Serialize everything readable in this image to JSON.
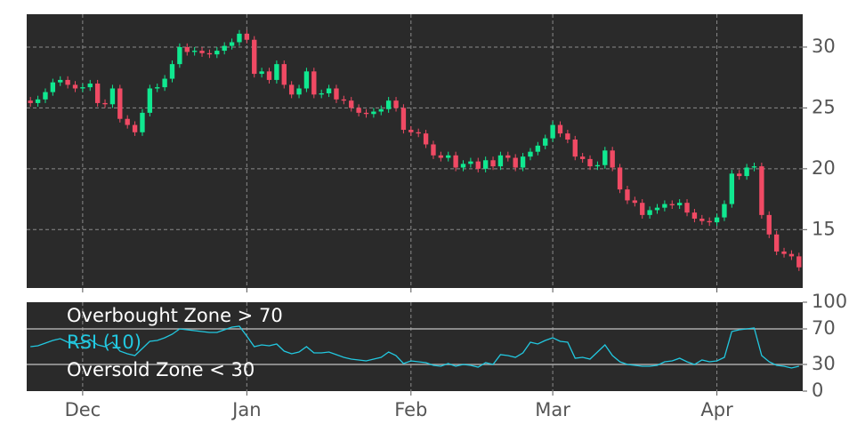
{
  "chart_data": [
    {
      "type": "candlestick",
      "categories": [
        null,
        null,
        null,
        null,
        null,
        null,
        null,
        "Dec",
        null,
        null,
        null,
        null,
        null,
        null,
        null,
        null,
        null,
        null,
        null,
        null,
        null,
        null,
        null,
        null,
        null,
        null,
        null,
        null,
        null,
        "Jan",
        null,
        null,
        null,
        null,
        null,
        null,
        null,
        null,
        null,
        null,
        null,
        null,
        null,
        null,
        null,
        null,
        null,
        null,
        null,
        null,
        null,
        "Feb",
        null,
        null,
        null,
        null,
        null,
        null,
        null,
        null,
        null,
        null,
        null,
        null,
        null,
        null,
        null,
        null,
        null,
        null,
        "Mar",
        null,
        null,
        null,
        null,
        null,
        null,
        null,
        null,
        null,
        null,
        null,
        null,
        null,
        null,
        null,
        null,
        null,
        null,
        null,
        null,
        null,
        "Apr",
        null,
        null,
        null,
        null,
        null,
        null,
        null,
        null,
        null,
        null,
        null
      ],
      "open": [
        25.6,
        25.4,
        25.7,
        26.3,
        27.1,
        27.3,
        26.9,
        26.6,
        26.7,
        27.0,
        25.4,
        25.3,
        26.6,
        24.1,
        23.6,
        23.0,
        24.6,
        26.6,
        26.7,
        27.4,
        28.6,
        30.0,
        29.6,
        29.7,
        29.5,
        29.4,
        29.7,
        30.1,
        30.4,
        31.1,
        30.6,
        27.8,
        28.0,
        27.3,
        28.6,
        26.9,
        26.1,
        26.6,
        28.0,
        26.1,
        26.2,
        26.6,
        25.7,
        25.6,
        25.0,
        24.6,
        24.5,
        24.7,
        24.9,
        25.6,
        25.0,
        23.2,
        23.0,
        22.9,
        22.0,
        21.1,
        20.9,
        21.1,
        20.1,
        20.4,
        20.6,
        20.0,
        20.7,
        20.2,
        21.1,
        20.9,
        20.1,
        21.0,
        21.4,
        21.9,
        22.5,
        23.6,
        22.9,
        22.4,
        21.0,
        20.8,
        20.2,
        20.3,
        21.5,
        20.1,
        18.3,
        17.4,
        17.2,
        16.2,
        16.6,
        16.8,
        17.1,
        17.0,
        17.2,
        16.4,
        15.9,
        15.7,
        15.6,
        16.0,
        17.1,
        19.6,
        19.4,
        20.1,
        20.2,
        16.2,
        14.6,
        13.2,
        13.0,
        12.8
      ],
      "high": [
        25.9,
        26.0,
        26.6,
        27.4,
        27.6,
        27.6,
        27.2,
        27.0,
        27.3,
        27.3,
        25.7,
        26.9,
        26.9,
        24.4,
        23.9,
        24.9,
        26.9,
        27.0,
        27.7,
        28.9,
        30.3,
        30.3,
        30.0,
        30.0,
        29.8,
        30.0,
        30.4,
        30.7,
        31.4,
        31.4,
        30.9,
        28.3,
        28.3,
        28.9,
        28.9,
        27.2,
        26.9,
        28.3,
        28.3,
        26.5,
        26.9,
        26.9,
        26.0,
        25.9,
        25.3,
        24.9,
        25.0,
        25.2,
        25.9,
        25.9,
        25.3,
        23.5,
        23.3,
        23.2,
        22.3,
        21.4,
        21.4,
        21.4,
        20.7,
        20.9,
        20.9,
        21.0,
        21.0,
        21.4,
        21.4,
        21.2,
        21.3,
        21.7,
        22.2,
        22.8,
        23.9,
        23.9,
        23.2,
        22.7,
        21.3,
        21.1,
        20.6,
        21.8,
        21.8,
        20.4,
        18.6,
        17.7,
        17.5,
        16.9,
        17.1,
        17.4,
        17.4,
        17.5,
        17.5,
        16.7,
        16.2,
        16.0,
        16.3,
        17.4,
        19.9,
        19.9,
        20.4,
        20.5,
        20.5,
        16.5,
        14.9,
        13.5,
        13.3,
        13.1
      ],
      "low": [
        25.1,
        25.1,
        25.4,
        26.0,
        26.8,
        26.6,
        26.3,
        26.3,
        26.4,
        25.1,
        25.0,
        25.0,
        23.8,
        23.3,
        22.7,
        22.7,
        24.3,
        26.3,
        26.4,
        27.1,
        28.3,
        29.3,
        29.3,
        29.2,
        29.1,
        29.1,
        29.4,
        29.8,
        30.1,
        30.3,
        27.5,
        27.5,
        27.0,
        27.0,
        26.6,
        25.8,
        25.8,
        26.3,
        25.8,
        25.8,
        25.9,
        25.4,
        25.3,
        24.7,
        24.3,
        24.2,
        24.2,
        24.4,
        24.6,
        24.7,
        22.9,
        22.7,
        22.6,
        21.7,
        20.8,
        20.6,
        20.6,
        19.8,
        19.8,
        20.1,
        19.7,
        19.7,
        19.9,
        19.9,
        20.6,
        19.8,
        19.8,
        20.7,
        21.1,
        21.6,
        22.2,
        22.6,
        22.1,
        20.7,
        20.5,
        19.9,
        19.9,
        20.0,
        19.8,
        18.0,
        17.1,
        16.9,
        15.9,
        15.9,
        16.3,
        16.5,
        16.7,
        16.7,
        16.1,
        15.6,
        15.4,
        15.3,
        15.3,
        15.7,
        16.8,
        19.1,
        19.1,
        19.8,
        15.9,
        14.3,
        12.9,
        12.7,
        12.5,
        11.6
      ],
      "close": [
        25.4,
        25.7,
        26.3,
        27.1,
        27.3,
        26.9,
        26.6,
        26.7,
        27.0,
        25.4,
        25.3,
        26.6,
        24.1,
        23.6,
        23.0,
        24.6,
        26.6,
        26.7,
        27.4,
        28.6,
        30.0,
        29.6,
        29.7,
        29.5,
        29.4,
        29.7,
        30.1,
        30.4,
        31.1,
        30.6,
        27.8,
        28.0,
        27.3,
        28.6,
        26.9,
        26.1,
        26.6,
        28.0,
        26.1,
        26.2,
        26.6,
        25.7,
        25.6,
        25.0,
        24.6,
        24.5,
        24.7,
        24.9,
        25.6,
        25.0,
        23.2,
        23.0,
        22.9,
        22.0,
        21.1,
        20.9,
        21.1,
        20.1,
        20.4,
        20.6,
        20.0,
        20.7,
        20.2,
        21.1,
        20.9,
        20.1,
        21.0,
        21.4,
        21.9,
        22.5,
        23.6,
        22.9,
        22.4,
        21.0,
        20.8,
        20.2,
        20.3,
        21.5,
        20.1,
        18.3,
        17.4,
        17.2,
        16.2,
        16.6,
        16.8,
        17.1,
        17.0,
        17.2,
        16.4,
        15.9,
        15.7,
        15.6,
        16.0,
        17.1,
        19.6,
        19.4,
        20.1,
        20.2,
        16.2,
        14.6,
        13.2,
        13.0,
        12.8,
        11.9
      ],
      "up_color": "#10e890",
      "down_color": "#f04a64",
      "ylim": [
        10.2,
        32.7
      ],
      "yticks": [
        15,
        20,
        25,
        30
      ],
      "grid": true
    },
    {
      "type": "line",
      "series": [
        {
          "name": "RSI (10)",
          "color": "#22c8e0",
          "values": [
            50,
            51,
            54,
            57,
            59,
            55,
            53,
            54,
            58,
            52,
            50,
            55,
            45,
            42,
            40,
            48,
            56,
            57,
            60,
            64,
            70,
            69,
            68,
            67,
            66,
            66,
            69,
            72,
            73,
            62,
            50,
            52,
            51,
            53,
            45,
            42,
            44,
            50,
            43,
            43,
            44,
            41,
            38,
            36,
            35,
            34,
            36,
            38,
            44,
            40,
            31,
            34,
            33,
            32,
            29,
            28,
            31,
            28,
            30,
            29,
            27,
            32,
            30,
            41,
            40,
            38,
            43,
            55,
            53,
            57,
            60,
            56,
            55,
            37,
            38,
            36,
            44,
            52,
            40,
            33,
            30,
            29,
            28,
            28,
            29,
            33,
            34,
            37,
            33,
            30,
            35,
            33,
            34,
            38,
            67,
            69,
            70,
            71,
            40,
            33,
            29,
            28,
            26,
            28
          ]
        }
      ],
      "reference_lines": [
        70,
        30
      ],
      "annotations": [
        "Overbought Zone > 70",
        "Oversold Zone < 30"
      ],
      "ylim": [
        0,
        100
      ],
      "yticks": [
        0,
        30,
        70,
        100
      ]
    }
  ]
}
